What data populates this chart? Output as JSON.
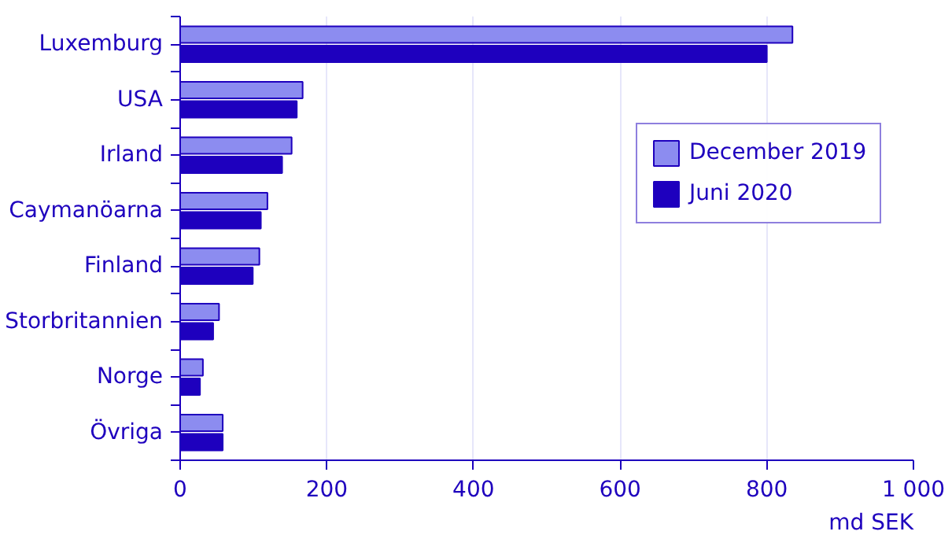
{
  "chart_data": {
    "type": "bar",
    "orientation": "horizontal",
    "xlabel": "md SEK",
    "categories": [
      "Luxemburg",
      "USA",
      "Irland",
      "Caymanöarna",
      "Finland",
      "Storbritannien",
      "Norge",
      "Övriga"
    ],
    "series": [
      {
        "name": "December 2019",
        "color": "#8c8cf0",
        "values": [
          835,
          167,
          152,
          119,
          108,
          53,
          31,
          58
        ]
      },
      {
        "name": "Juni 2020",
        "color": "#1e00be",
        "values": [
          800,
          159,
          139,
          110,
          99,
          45,
          27,
          58
        ]
      }
    ],
    "xlim": [
      0,
      1000
    ],
    "xticks": [
      0,
      200,
      400,
      600,
      800,
      {
        "value": 1000,
        "label": "1 000"
      }
    ],
    "grid": "x",
    "legend": "top right"
  }
}
